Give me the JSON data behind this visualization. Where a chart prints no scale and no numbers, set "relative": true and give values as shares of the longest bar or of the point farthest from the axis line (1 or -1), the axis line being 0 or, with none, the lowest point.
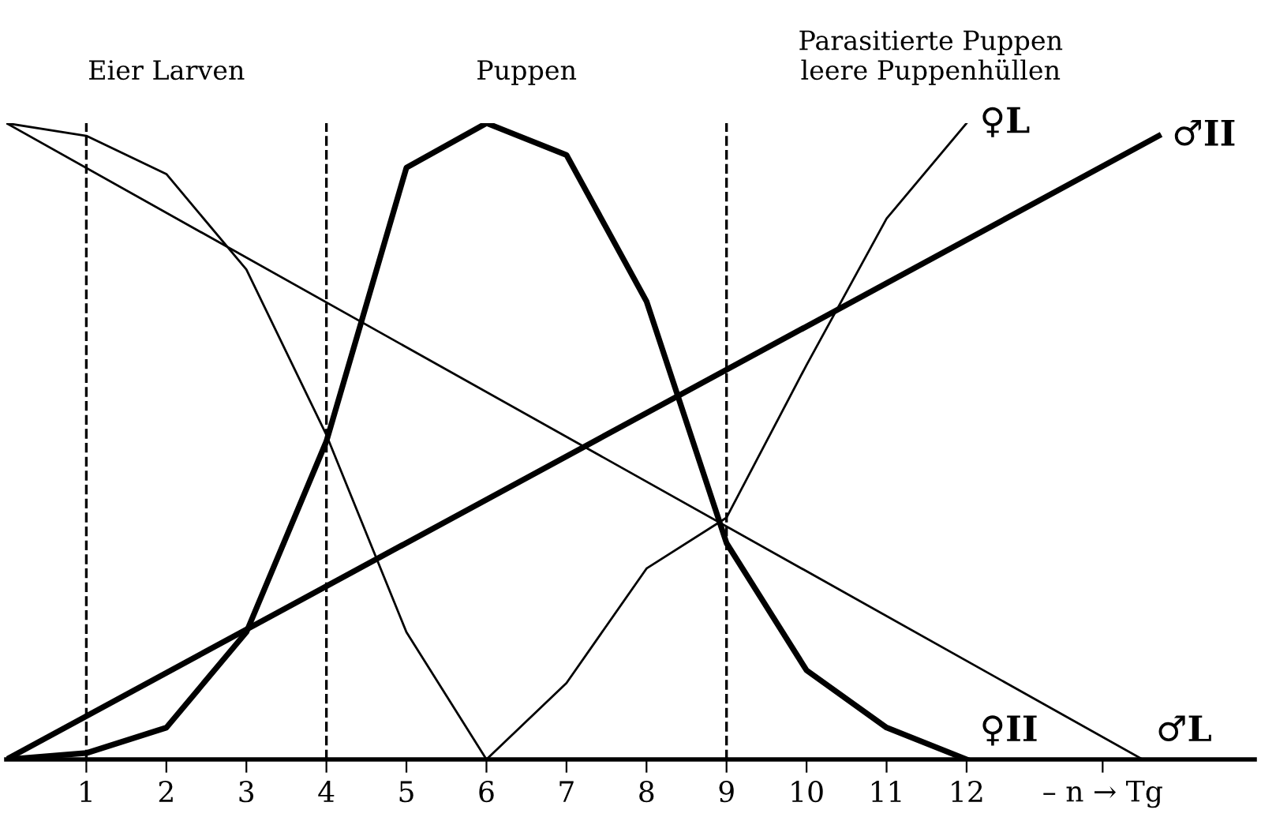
{
  "chart_data": {
    "type": "line",
    "relative": true,
    "tick_labels": "x",
    "grid": false,
    "xlim": [
      0,
      15.6
    ],
    "xticks": [
      1,
      2,
      3,
      4,
      5,
      6,
      7,
      8,
      9,
      10,
      11,
      12,
      {
        "value": 13.7,
        "label": "– n → Tg"
      }
    ],
    "annotations": [
      "Eier Larven",
      "Puppen",
      "Parasitierte Puppen\nleere Puppenhüllen"
    ],
    "ref_lines": [
      {
        "axis": "x",
        "value": 1,
        "line_style": "dashed",
        "color": "#000000"
      },
      {
        "axis": "x",
        "value": 4,
        "line_style": "dashed",
        "color": "#000000"
      },
      {
        "axis": "x",
        "value": 9,
        "line_style": "dashed",
        "color": "#000000"
      }
    ],
    "series": [
      {
        "name": "♀L",
        "color": "#000000",
        "x": [
          0,
          1,
          2,
          3,
          4,
          5,
          6,
          7,
          8,
          9,
          10,
          11,
          12
        ],
        "values": [
          1,
          0.98,
          0.92,
          0.77,
          0.51,
          0.2,
          0,
          0.12,
          0.3,
          0.38,
          0.62,
          0.85,
          1
        ]
      },
      {
        "name": "♂II",
        "color": "#000000",
        "x": [
          0,
          14.4
        ],
        "values": [
          0,
          0.98
        ]
      },
      {
        "name": "♀II",
        "color": "#000000",
        "x": [
          0,
          1,
          2,
          3,
          4,
          5,
          6,
          7,
          8,
          9,
          10,
          11,
          12
        ],
        "values": [
          0,
          0.01,
          0.05,
          0.2,
          0.5,
          0.93,
          1,
          0.95,
          0.72,
          0.34,
          0.14,
          0.05,
          0
        ]
      },
      {
        "name": "♂L",
        "color": "#000000",
        "x": [
          0,
          14.2
        ],
        "values": [
          1,
          0
        ]
      }
    ]
  }
}
